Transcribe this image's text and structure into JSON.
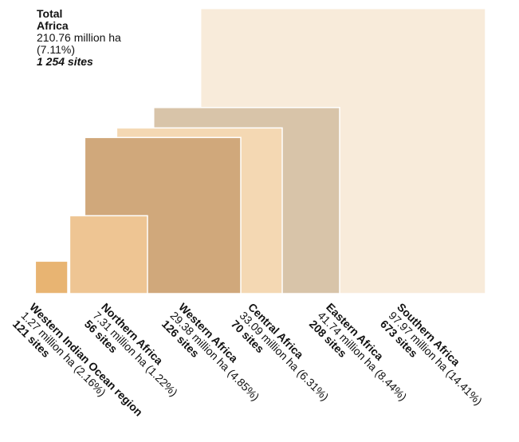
{
  "total": {
    "line1": "Total",
    "line2": "Africa",
    "area": "210.76 million ha",
    "share": "(7.11%)",
    "sites": "1 254 sites"
  },
  "chart_data": {
    "type": "nested-squares",
    "title": "",
    "unit": "million ha",
    "categories": [
      {
        "name": "Western Indian Ocean region",
        "area": 1.27,
        "share_pct": 2.16,
        "sites": 121,
        "area_label": "1.27 million ha (2.16%)",
        "sites_label": "121 sites",
        "color": "#E8B472"
      },
      {
        "name": "Northern Africa",
        "area": 7.31,
        "share_pct": 1.22,
        "sites": 56,
        "area_label": "7.31 million ha (1.22%)",
        "sites_label": "56 sites",
        "color": "#EEC593"
      },
      {
        "name": "Western Africa",
        "area": 29.38,
        "share_pct": 4.85,
        "sites": 126,
        "area_label": "29.38 million ha (4.85%)",
        "sites_label": "126 sites",
        "color": "#D0A87B"
      },
      {
        "name": "Central Africa",
        "area": 33.09,
        "share_pct": 6.31,
        "sites": 70,
        "area_label": "33.09 million ha (6.31%)",
        "sites_label": "70 sites",
        "color": "#F4D8B3"
      },
      {
        "name": "Eastern Africa",
        "area": 41.74,
        "share_pct": 8.44,
        "sites": 208,
        "area_label": "41.74 million ha (8.44%)",
        "sites_label": "208 sites",
        "color": "#D8C4A9"
      },
      {
        "name": "Southern Africa",
        "area": 97.97,
        "share_pct": 14.41,
        "sites": 673,
        "area_label": "97.97 million ha (14.41%)",
        "sites_label": "673 sites",
        "color": "#F8EBDA"
      }
    ]
  }
}
